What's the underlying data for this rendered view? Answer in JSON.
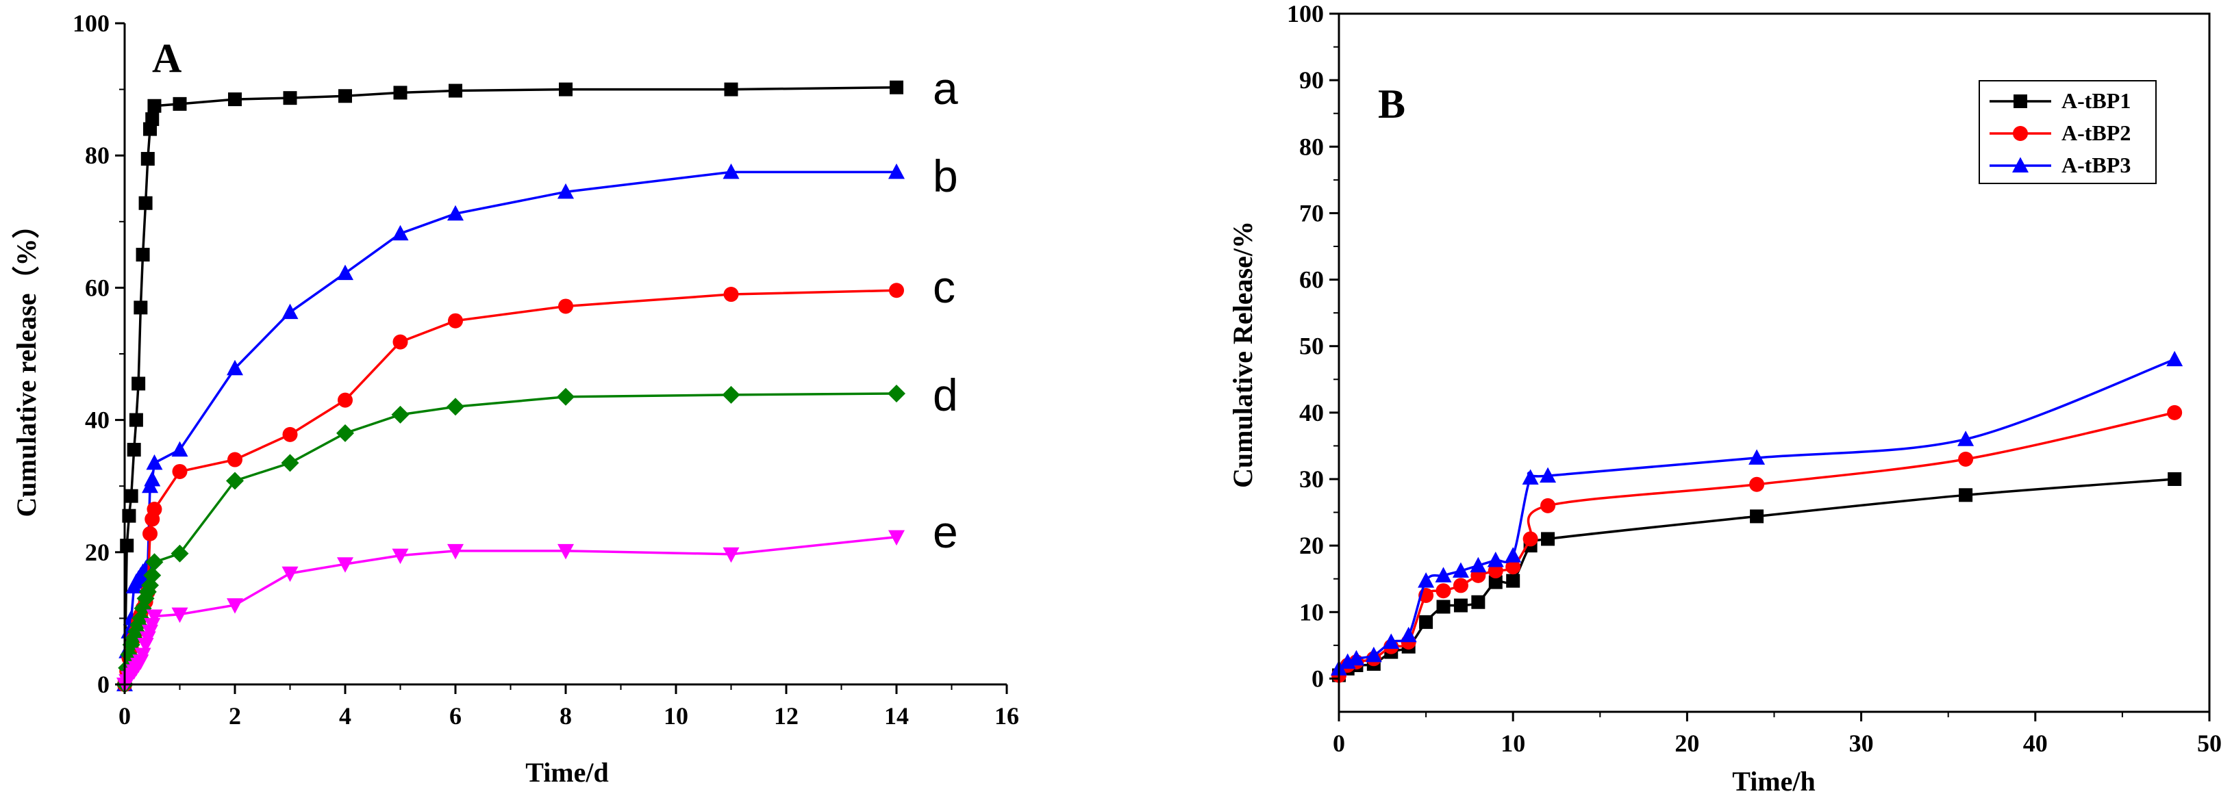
{
  "chart_data": [
    {
      "panel": "A",
      "type": "line",
      "title": "",
      "xlabel": "Time/d",
      "ylabel": "Cumulative release（%）",
      "xlim": [
        0,
        16
      ],
      "ylim": [
        0,
        100
      ],
      "xticks": [
        0,
        2,
        4,
        6,
        8,
        10,
        12,
        14,
        16
      ],
      "yticks": [
        0,
        20,
        40,
        60,
        80,
        100
      ],
      "xtick_labels": [
        "0",
        "2",
        "4",
        "6",
        "8",
        "10",
        "12",
        "14",
        "16"
      ],
      "ytick_labels": [
        "0",
        "20",
        "40",
        "60",
        "80",
        "100"
      ],
      "grid": false,
      "series": [
        {
          "name": "a",
          "color": "#000000",
          "marker": "square",
          "x": [
            0,
            0.04,
            0.08,
            0.12,
            0.17,
            0.21,
            0.25,
            0.29,
            0.33,
            0.38,
            0.42,
            0.46,
            0.5,
            0.54,
            1,
            2,
            3,
            4,
            5,
            6,
            8,
            11,
            14
          ],
          "y": [
            0,
            21,
            25.5,
            28.5,
            35.5,
            40,
            45.5,
            57,
            65,
            72.8,
            79.5,
            84,
            85.5,
            87.5,
            87.8,
            88.5,
            88.7,
            89,
            89.5,
            89.8,
            90,
            90,
            90.3
          ]
        },
        {
          "name": "b",
          "color": "#0000ff",
          "marker": "triangle-up",
          "x": [
            0,
            0.04,
            0.08,
            0.12,
            0.17,
            0.21,
            0.25,
            0.29,
            0.33,
            0.38,
            0.42,
            0.46,
            0.5,
            0.54,
            1,
            2,
            3,
            4,
            5,
            6,
            8,
            11,
            14
          ],
          "y": [
            0,
            5,
            8,
            10,
            14.8,
            15.5,
            16,
            16.5,
            17,
            17.5,
            18,
            30,
            31,
            33.5,
            35.5,
            47.8,
            56.3,
            62.2,
            68.2,
            71.2,
            74.5,
            77.5,
            77.5
          ]
        },
        {
          "name": "c",
          "color": "#ff0000",
          "marker": "circle",
          "x": [
            0,
            0.04,
            0.08,
            0.12,
            0.17,
            0.21,
            0.25,
            0.29,
            0.33,
            0.38,
            0.42,
            0.46,
            0.5,
            0.54,
            1,
            2,
            3,
            4,
            5,
            6,
            8,
            11,
            14
          ],
          "y": [
            0,
            2,
            4,
            5.5,
            7,
            8,
            9.5,
            10.5,
            11.5,
            12.5,
            14,
            22.8,
            25,
            26.5,
            32.2,
            34,
            37.8,
            43,
            51.8,
            55,
            57.2,
            59,
            59.6
          ]
        },
        {
          "name": "d",
          "color": "#008000",
          "marker": "diamond",
          "x": [
            0,
            0.04,
            0.08,
            0.12,
            0.17,
            0.21,
            0.25,
            0.29,
            0.33,
            0.38,
            0.42,
            0.46,
            0.5,
            0.54,
            1,
            2,
            3,
            4,
            5,
            6,
            8,
            11,
            14
          ],
          "y": [
            0,
            2.5,
            4.5,
            6,
            7,
            8,
            9,
            10,
            11.5,
            13,
            14,
            15,
            16.5,
            18.5,
            19.8,
            30.8,
            33.5,
            38,
            40.8,
            42,
            43.5,
            43.8,
            44
          ]
        },
        {
          "name": "e",
          "color": "#ff00ff",
          "marker": "triangle-down",
          "x": [
            0,
            0.04,
            0.08,
            0.12,
            0.17,
            0.21,
            0.25,
            0.29,
            0.33,
            0.38,
            0.42,
            0.46,
            0.5,
            0.54,
            1,
            2,
            3,
            4,
            5,
            6,
            8,
            11,
            14
          ],
          "y": [
            0,
            0.5,
            1,
            1.5,
            2,
            2.5,
            3,
            3.5,
            4.5,
            6,
            7,
            8,
            9,
            10.3,
            10.6,
            12,
            16.8,
            18.2,
            19.5,
            20.2,
            20.2,
            19.7,
            22.3
          ]
        }
      ],
      "annotations": [
        "A",
        "a",
        "b",
        "c",
        "d",
        "e"
      ]
    },
    {
      "panel": "B",
      "type": "line",
      "title": "",
      "xlabel": "Time/h",
      "ylabel": "Cumulative Release/%",
      "xlim": [
        0,
        50
      ],
      "ylim": [
        -5,
        100
      ],
      "xticks": [
        0,
        10,
        20,
        30,
        40,
        50
      ],
      "yticks": [
        0,
        10,
        20,
        30,
        40,
        50,
        60,
        70,
        80,
        90,
        100
      ],
      "xtick_labels": [
        "0",
        "10",
        "20",
        "30",
        "40",
        "50"
      ],
      "ytick_labels": [
        "0",
        "10",
        "20",
        "30",
        "40",
        "50",
        "60",
        "70",
        "80",
        "90",
        "100"
      ],
      "grid": false,
      "legend_position": "top-right",
      "series": [
        {
          "name": "A-tBP1",
          "color": "#000000",
          "marker": "square",
          "x": [
            0,
            0.5,
            1,
            2,
            3,
            4,
            5,
            6,
            7,
            8,
            9,
            10,
            11,
            12,
            24,
            36,
            48
          ],
          "y": [
            0.5,
            1.5,
            2,
            2.2,
            4,
            4.8,
            8.5,
            10.8,
            11,
            11.5,
            14.5,
            14.7,
            20,
            21,
            24.4,
            27.6,
            30
          ]
        },
        {
          "name": "A-tBP2",
          "color": "#ff0000",
          "marker": "circle",
          "x": [
            0,
            0.5,
            1,
            2,
            3,
            4,
            5,
            6,
            7,
            8,
            9,
            10,
            11,
            12,
            24,
            36,
            48
          ],
          "y": [
            0.5,
            2,
            2.5,
            3,
            4.8,
            5.5,
            12.5,
            13.2,
            14,
            15.5,
            16.2,
            16.8,
            21,
            26,
            29.2,
            33,
            40
          ]
        },
        {
          "name": "A-tBP3",
          "color": "#0000ff",
          "marker": "triangle-up",
          "x": [
            0,
            0.5,
            1,
            2,
            3,
            4,
            5,
            6,
            7,
            8,
            9,
            10,
            11,
            12,
            24,
            36,
            48
          ],
          "y": [
            1.5,
            2.5,
            3,
            3.5,
            5.5,
            6.5,
            14.7,
            15.5,
            16.2,
            17,
            17.8,
            18.5,
            30.2,
            30.5,
            33.2,
            36,
            48
          ]
        }
      ],
      "annotations": [
        "B"
      ]
    }
  ]
}
